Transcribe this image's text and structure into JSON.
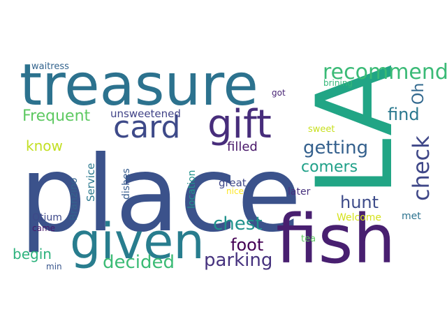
{
  "word_cloud": {
    "words": [
      {
        "text": "place",
        "color": "#3b528b"
      },
      {
        "text": "treasure",
        "color": "#2c728e"
      },
      {
        "text": "LA",
        "color": "#21a585"
      },
      {
        "text": "fish",
        "color": "#481f70"
      },
      {
        "text": "given",
        "color": "#287d8e"
      },
      {
        "text": "gift",
        "color": "#472d7b"
      },
      {
        "text": "card",
        "color": "#3e4a89"
      },
      {
        "text": "recommend",
        "color": "#3aba76"
      },
      {
        "text": "check",
        "color": "#3f4788"
      },
      {
        "text": "getting",
        "color": "#34608d"
      },
      {
        "text": "comers",
        "color": "#1fa088"
      },
      {
        "text": "chest",
        "color": "#20928c"
      },
      {
        "text": "decided",
        "color": "#3bbb75"
      },
      {
        "text": "parking",
        "color": "#46327e"
      },
      {
        "text": "hunt",
        "color": "#3e4c8a"
      },
      {
        "text": "foot",
        "color": "#440154"
      },
      {
        "text": "find",
        "color": "#2a788e"
      },
      {
        "text": "Oh",
        "color": "#31688e"
      },
      {
        "text": "Frequent",
        "color": "#5ec962"
      },
      {
        "text": "know",
        "color": "#c2df23"
      },
      {
        "text": "begin",
        "color": "#2db27d"
      },
      {
        "text": "unsweetened",
        "color": "#404387"
      },
      {
        "text": "filled",
        "color": "#481769"
      },
      {
        "text": "great",
        "color": "#3f4788"
      },
      {
        "text": "nice",
        "color": "#fde725"
      },
      {
        "text": "later",
        "color": "#46307e"
      },
      {
        "text": "sweet",
        "color": "#c8e020"
      },
      {
        "text": "got",
        "color": "#482475"
      },
      {
        "text": "brining",
        "color": "#35b779"
      },
      {
        "text": "waitress",
        "color": "#33638d"
      },
      {
        "text": "Welcome",
        "color": "#d5e21a"
      },
      {
        "text": "met",
        "color": "#2c728e"
      },
      {
        "text": "tea",
        "color": "#5ec962"
      },
      {
        "text": "Otium",
        "color": "#3e4989"
      },
      {
        "text": "came",
        "color": "#48186a"
      },
      {
        "text": "min",
        "color": "#39568c"
      },
      {
        "text": "Branzino",
        "color": "#33638d"
      },
      {
        "text": "Service",
        "color": "#2a788e"
      },
      {
        "text": "dishes",
        "color": "#365c8d"
      },
      {
        "text": "location",
        "color": "#21918c"
      }
    ]
  }
}
